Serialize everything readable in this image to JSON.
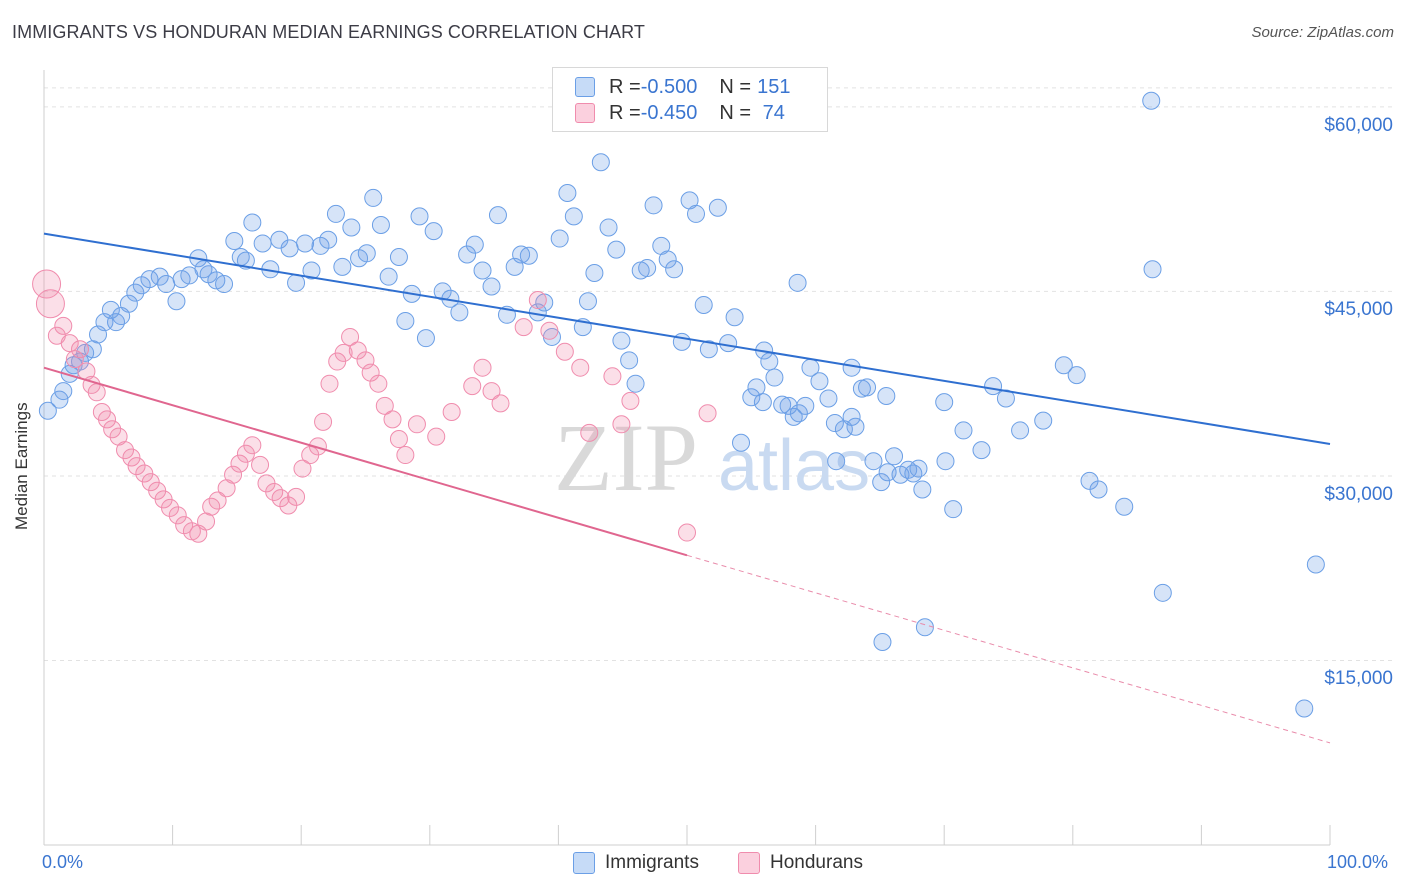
{
  "title": "IMMIGRANTS VS HONDURAN MEDIAN EARNINGS CORRELATION CHART",
  "source": "Source: ZipAtlas.com",
  "watermark": {
    "zip": "ZIP",
    "atlas": "atlas"
  },
  "legend_top": {
    "rows": [
      {
        "r_label": "R = ",
        "r_value": "-0.500",
        "n_label": "N = ",
        "n_value": "151",
        "color": "#6b9fe6"
      },
      {
        "r_label": "R = ",
        "r_value": "-0.450",
        "n_label": "N = ",
        "n_value": " 74",
        "color": "#f08cad"
      }
    ]
  },
  "chart_data": {
    "type": "scatter",
    "title": "IMMIGRANTS VS HONDURAN MEDIAN EARNINGS CORRELATION CHART",
    "xlabel": "",
    "ylabel": "Median Earnings",
    "xlim": [
      0,
      100
    ],
    "ylim": [
      0,
      63000
    ],
    "x_tick_labels": [
      "0.0%",
      "100.0%"
    ],
    "y_ticks": [
      {
        "value": 15000,
        "label": "$15,000"
      },
      {
        "value": 30000,
        "label": "$30,000"
      },
      {
        "value": 45000,
        "label": "$45,000"
      },
      {
        "value": 60000,
        "label": "$60,000"
      }
    ],
    "grid": true,
    "legend_position": "bottom",
    "series": [
      {
        "name": "Immigrants",
        "color": "#6b9fe6",
        "trend": {
          "x": [
            0,
            100
          ],
          "y": [
            49700,
            32600
          ],
          "dashed_from": null
        },
        "points": [
          [
            0.3,
            35300
          ],
          [
            1.2,
            36200
          ],
          [
            1.5,
            36900
          ],
          [
            2.0,
            38300
          ],
          [
            2.3,
            39000
          ],
          [
            2.8,
            39300
          ],
          [
            3.2,
            40000
          ],
          [
            3.8,
            40300
          ],
          [
            4.2,
            41500
          ],
          [
            4.7,
            42500
          ],
          [
            5.2,
            43500
          ],
          [
            5.6,
            42500
          ],
          [
            6.0,
            43000
          ],
          [
            6.6,
            44000
          ],
          [
            7.1,
            44900
          ],
          [
            7.6,
            45500
          ],
          [
            8.2,
            46000
          ],
          [
            9.0,
            46200
          ],
          [
            9.5,
            45600
          ],
          [
            10.3,
            44200
          ],
          [
            10.7,
            46000
          ],
          [
            11.3,
            46300
          ],
          [
            12.0,
            47700
          ],
          [
            12.4,
            46800
          ],
          [
            12.8,
            46400
          ],
          [
            13.4,
            45900
          ],
          [
            14.0,
            45600
          ],
          [
            14.8,
            49100
          ],
          [
            15.3,
            47800
          ],
          [
            15.7,
            47500
          ],
          [
            16.2,
            50600
          ],
          [
            17.0,
            48900
          ],
          [
            17.6,
            46800
          ],
          [
            18.3,
            49200
          ],
          [
            19.1,
            48500
          ],
          [
            19.6,
            45700
          ],
          [
            20.3,
            48900
          ],
          [
            20.8,
            46700
          ],
          [
            21.5,
            48700
          ],
          [
            22.1,
            49200
          ],
          [
            22.7,
            51300
          ],
          [
            23.2,
            47000
          ],
          [
            23.9,
            50200
          ],
          [
            24.5,
            47700
          ],
          [
            25.1,
            48100
          ],
          [
            25.6,
            52600
          ],
          [
            26.2,
            50400
          ],
          [
            26.8,
            46200
          ],
          [
            27.6,
            47800
          ],
          [
            28.1,
            42600
          ],
          [
            28.6,
            44800
          ],
          [
            29.2,
            51100
          ],
          [
            29.7,
            41200
          ],
          [
            30.3,
            49900
          ],
          [
            31.0,
            45000
          ],
          [
            31.6,
            44400
          ],
          [
            32.3,
            43300
          ],
          [
            32.9,
            48000
          ],
          [
            33.5,
            48800
          ],
          [
            34.1,
            46700
          ],
          [
            34.8,
            45400
          ],
          [
            35.3,
            51200
          ],
          [
            36.0,
            43100
          ],
          [
            36.6,
            47000
          ],
          [
            37.1,
            48000
          ],
          [
            37.7,
            47900
          ],
          [
            38.4,
            43300
          ],
          [
            38.9,
            44100
          ],
          [
            39.5,
            41300
          ],
          [
            40.1,
            49300
          ],
          [
            40.7,
            53000
          ],
          [
            41.2,
            51100
          ],
          [
            41.9,
            42100
          ],
          [
            42.3,
            44200
          ],
          [
            42.8,
            46500
          ],
          [
            43.3,
            55500
          ],
          [
            43.9,
            50200
          ],
          [
            44.5,
            48400
          ],
          [
            44.9,
            41000
          ],
          [
            45.5,
            39400
          ],
          [
            46.0,
            37500
          ],
          [
            46.4,
            46700
          ],
          [
            46.9,
            46900
          ],
          [
            47.4,
            52000
          ],
          [
            48.0,
            48700
          ],
          [
            48.5,
            47600
          ],
          [
            49.0,
            46800
          ],
          [
            49.6,
            40900
          ],
          [
            50.2,
            52400
          ],
          [
            50.7,
            51300
          ],
          [
            51.3,
            43900
          ],
          [
            51.7,
            40300
          ],
          [
            52.4,
            51800
          ],
          [
            53.2,
            40800
          ],
          [
            53.7,
            42900
          ],
          [
            54.2,
            32700
          ],
          [
            55.0,
            36400
          ],
          [
            55.4,
            37200
          ],
          [
            55.9,
            36000
          ],
          [
            56.4,
            39300
          ],
          [
            56.8,
            38000
          ],
          [
            57.4,
            35800
          ],
          [
            57.9,
            35700
          ],
          [
            58.3,
            34800
          ],
          [
            58.7,
            35100
          ],
          [
            59.2,
            35700
          ],
          [
            59.6,
            38800
          ],
          [
            60.3,
            37700
          ],
          [
            61.0,
            36300
          ],
          [
            61.5,
            34300
          ],
          [
            62.2,
            33800
          ],
          [
            62.8,
            34800
          ],
          [
            63.1,
            34000
          ],
          [
            63.6,
            37100
          ],
          [
            64.0,
            37200
          ],
          [
            64.5,
            31200
          ],
          [
            65.1,
            29500
          ],
          [
            65.6,
            30300
          ],
          [
            66.1,
            31600
          ],
          [
            66.6,
            30100
          ],
          [
            67.2,
            30500
          ],
          [
            67.6,
            30200
          ],
          [
            68.3,
            28900
          ],
          [
            70.1,
            31200
          ],
          [
            70.7,
            27300
          ],
          [
            71.5,
            33700
          ],
          [
            72.9,
            32100
          ],
          [
            73.8,
            37300
          ],
          [
            74.8,
            36300
          ],
          [
            75.9,
            33700
          ],
          [
            77.7,
            34500
          ],
          [
            79.3,
            39000
          ],
          [
            80.3,
            38200
          ],
          [
            81.3,
            29600
          ],
          [
            82.0,
            28900
          ],
          [
            84.0,
            27500
          ],
          [
            65.2,
            16500
          ],
          [
            68.5,
            17700
          ],
          [
            87.0,
            20500
          ],
          [
            86.1,
            60500
          ],
          [
            98.0,
            11100
          ],
          [
            98.9,
            22800
          ],
          [
            86.2,
            46800
          ],
          [
            58.6,
            45700
          ],
          [
            62.8,
            38800
          ],
          [
            56.0,
            40200
          ],
          [
            65.5,
            36500
          ],
          [
            61.6,
            31200
          ],
          [
            68.0,
            30600
          ],
          [
            70.0,
            36000
          ]
        ]
      },
      {
        "name": "Hondurans",
        "color": "#f08cad",
        "trend": {
          "x": [
            0,
            100
          ],
          "y": [
            38800,
            8300
          ],
          "solid_until_x": 50
        },
        "points": [
          [
            0.2,
            45600
          ],
          [
            0.5,
            44000
          ],
          [
            1.0,
            41400
          ],
          [
            1.5,
            42200
          ],
          [
            2.0,
            40800
          ],
          [
            2.4,
            39500
          ],
          [
            2.8,
            40300
          ],
          [
            3.3,
            38500
          ],
          [
            3.7,
            37400
          ],
          [
            4.1,
            36800
          ],
          [
            4.5,
            35200
          ],
          [
            4.9,
            34600
          ],
          [
            5.3,
            33800
          ],
          [
            5.8,
            33200
          ],
          [
            6.3,
            32100
          ],
          [
            6.8,
            31500
          ],
          [
            7.2,
            30800
          ],
          [
            7.8,
            30200
          ],
          [
            8.3,
            29500
          ],
          [
            8.8,
            28800
          ],
          [
            9.3,
            28100
          ],
          [
            9.8,
            27400
          ],
          [
            10.4,
            26800
          ],
          [
            10.9,
            26000
          ],
          [
            11.5,
            25500
          ],
          [
            12.0,
            25300
          ],
          [
            12.6,
            26300
          ],
          [
            13.0,
            27500
          ],
          [
            13.5,
            28000
          ],
          [
            14.2,
            29000
          ],
          [
            14.7,
            30100
          ],
          [
            15.2,
            31000
          ],
          [
            15.7,
            31800
          ],
          [
            16.2,
            32500
          ],
          [
            16.8,
            30900
          ],
          [
            17.3,
            29400
          ],
          [
            17.9,
            28700
          ],
          [
            18.4,
            28200
          ],
          [
            19.0,
            27600
          ],
          [
            19.6,
            28300
          ],
          [
            20.1,
            30600
          ],
          [
            20.7,
            31700
          ],
          [
            21.3,
            32400
          ],
          [
            21.7,
            34400
          ],
          [
            22.2,
            37500
          ],
          [
            22.8,
            39300
          ],
          [
            23.3,
            40000
          ],
          [
            23.8,
            41300
          ],
          [
            24.4,
            40200
          ],
          [
            25.0,
            39400
          ],
          [
            25.4,
            38400
          ],
          [
            26.0,
            37500
          ],
          [
            26.5,
            35700
          ],
          [
            27.1,
            34600
          ],
          [
            27.6,
            33000
          ],
          [
            28.1,
            31700
          ],
          [
            29.0,
            34200
          ],
          [
            30.5,
            33200
          ],
          [
            31.7,
            35200
          ],
          [
            33.3,
            37300
          ],
          [
            34.1,
            38800
          ],
          [
            34.8,
            36900
          ],
          [
            35.5,
            35900
          ],
          [
            37.3,
            42100
          ],
          [
            38.4,
            44300
          ],
          [
            39.3,
            41800
          ],
          [
            40.5,
            40100
          ],
          [
            41.7,
            38800
          ],
          [
            42.4,
            33500
          ],
          [
            44.2,
            38100
          ],
          [
            44.9,
            34200
          ],
          [
            45.6,
            36100
          ],
          [
            50.0,
            25400
          ],
          [
            51.6,
            35100
          ]
        ]
      }
    ]
  },
  "bottom_legend": [
    {
      "label": "Immigrants",
      "color": "#6b9fe6"
    },
    {
      "label": "Hondurans",
      "color": "#f08cad"
    }
  ]
}
